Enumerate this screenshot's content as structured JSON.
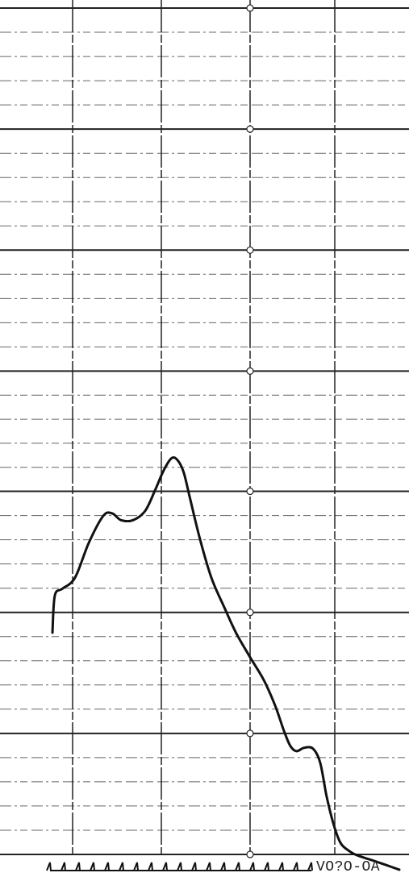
{
  "chart_data": {
    "type": "line",
    "title": "",
    "xlabel": "",
    "ylabel": "",
    "grid": true,
    "xlim": [
      0,
      100
    ],
    "ylim": [
      0,
      100
    ],
    "major_y_lines": [
      0,
      14.3,
      28.6,
      42.9,
      57.1,
      71.4,
      85.7,
      100
    ],
    "minor_y_steps_per_major": 5,
    "major_x_lines": [
      18,
      40,
      62,
      83
    ],
    "series": [
      {
        "name": "",
        "x": [
          13,
          13.6,
          15.5,
          18.6,
          22,
          25.6,
          27.8,
          30,
          33,
          36,
          38.5,
          40.5,
          42.5,
          44,
          45.5,
          47,
          49.5,
          52.4,
          55.6,
          58.5,
          62,
          65.4,
          68.2,
          70.4,
          72,
          73.5,
          75.4,
          77.6,
          79.4,
          81,
          82.8,
          84.5,
          86.6,
          88.5,
          91.7,
          95.4,
          99
        ],
        "y": [
          26.2,
          30.6,
          31.4,
          32.7,
          36.8,
          40,
          40.3,
          39.5,
          39.5,
          40.6,
          43.1,
          45.3,
          46.8,
          46.6,
          45.2,
          42.3,
          37.4,
          32.7,
          29.2,
          26.2,
          23.3,
          20.6,
          17.6,
          14.6,
          12.8,
          12.2,
          12.6,
          12.5,
          10.8,
          6.8,
          3.4,
          1.3,
          0.4,
          -0.1,
          -0.6,
          -1.2,
          -1.8
        ]
      }
    ],
    "bottom_label": "VO?O-OA"
  },
  "colors": {
    "line": "#111111",
    "grid_major": "#222222",
    "grid_minor": "#666666",
    "background": "#ffffff"
  }
}
